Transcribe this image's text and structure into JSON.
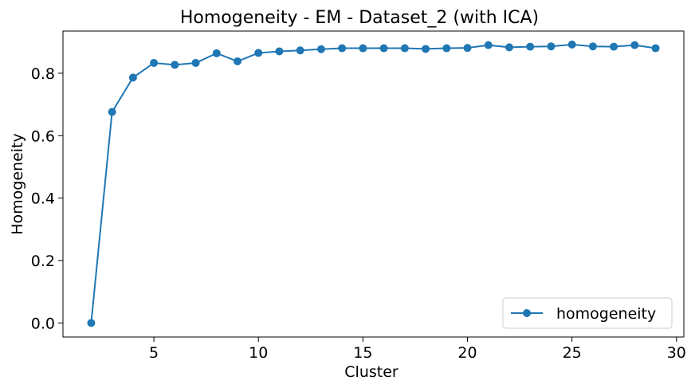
{
  "chart_data": {
    "type": "line",
    "title": "Homogeneity - EM - Dataset_2 (with ICA)",
    "xlabel": "Cluster",
    "ylabel": "Homogeneity",
    "xlim": [
      0.65,
      30.35
    ],
    "ylim": [
      -0.045,
      0.935
    ],
    "xticks": [
      5,
      10,
      15,
      20,
      25,
      30
    ],
    "yticks": [
      0.0,
      0.2,
      0.4,
      0.6,
      0.8
    ],
    "grid": false,
    "legend_position": "lower right",
    "series": [
      {
        "name": "homogeneity",
        "color": "#1f77b4",
        "marker": "circle",
        "x": [
          2,
          3,
          4,
          5,
          6,
          7,
          8,
          9,
          10,
          11,
          12,
          13,
          14,
          15,
          16,
          17,
          18,
          19,
          20,
          21,
          22,
          23,
          24,
          25,
          26,
          27,
          28,
          29
        ],
        "y": [
          0.0,
          0.676,
          0.786,
          0.833,
          0.827,
          0.833,
          0.864,
          0.838,
          0.865,
          0.87,
          0.873,
          0.877,
          0.88,
          0.88,
          0.88,
          0.88,
          0.878,
          0.88,
          0.881,
          0.89,
          0.883,
          0.885,
          0.886,
          0.892,
          0.886,
          0.885,
          0.89,
          0.88
        ]
      }
    ]
  }
}
